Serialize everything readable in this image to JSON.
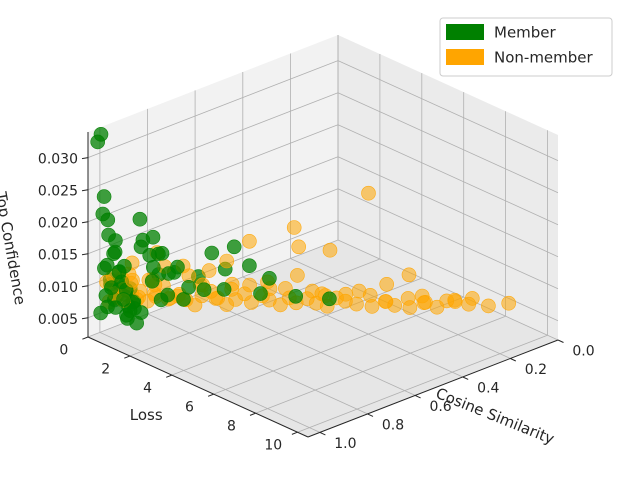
{
  "chart_data": {
    "type": "scatter3d",
    "title": "",
    "xlabel": "Loss",
    "ylabel": "Cosine Similarity",
    "zlabel": "Top Confidence",
    "xlim": [
      0,
      10.5
    ],
    "ylim": [
      0,
      1.05
    ],
    "zlim": [
      0.002,
      0.034
    ],
    "xticks": [
      0,
      2,
      4,
      6,
      8,
      10
    ],
    "yticks": [
      0.0,
      0.2,
      0.4,
      0.6,
      0.8,
      1.0
    ],
    "zticks": [
      0.005,
      0.01,
      0.015,
      0.02,
      0.025,
      0.03
    ],
    "xtick_labels": [
      "0",
      "2",
      "4",
      "6",
      "8",
      "10"
    ],
    "ytick_labels": [
      "0.0",
      "0.2",
      "0.4",
      "0.6",
      "0.8",
      "1.0"
    ],
    "ztick_labels": [
      "0.005",
      "0.010",
      "0.015",
      "0.020",
      "0.025",
      "0.030"
    ],
    "legend": [
      {
        "name": "Member",
        "color": "#008000"
      },
      {
        "name": "Non-member",
        "color": "#ffa500"
      }
    ],
    "legend_position": "top-right",
    "series": [
      {
        "name": "Non-member",
        "color": "#ffa500",
        "points": [
          [
            8.6,
            0.04,
            0.0055
          ],
          [
            8.2,
            0.09,
            0.0052
          ],
          [
            8.0,
            0.14,
            0.0068
          ],
          [
            7.6,
            0.12,
            0.005
          ],
          [
            7.5,
            0.17,
            0.0062
          ],
          [
            7.3,
            0.15,
            0.0054
          ],
          [
            7.0,
            0.2,
            0.0048
          ],
          [
            6.9,
            0.24,
            0.006
          ],
          [
            6.6,
            0.22,
            0.0052
          ],
          [
            6.5,
            0.27,
            0.005
          ],
          [
            6.3,
            0.26,
            0.006
          ],
          [
            6.0,
            0.29,
            0.0049
          ],
          [
            5.9,
            0.32,
            0.0058
          ],
          [
            5.7,
            0.3,
            0.0052
          ],
          [
            5.6,
            0.35,
            0.005
          ],
          [
            5.4,
            0.34,
            0.0063
          ],
          [
            5.2,
            0.38,
            0.0052
          ],
          [
            5.1,
            0.36,
            0.0068
          ],
          [
            4.9,
            0.4,
            0.0055
          ],
          [
            4.7,
            0.42,
            0.006
          ],
          [
            4.6,
            0.45,
            0.005
          ],
          [
            4.4,
            0.44,
            0.0062
          ],
          [
            4.3,
            0.47,
            0.0053
          ],
          [
            4.1,
            0.49,
            0.006
          ],
          [
            4.0,
            0.46,
            0.0066
          ],
          [
            3.8,
            0.51,
            0.0052
          ],
          [
            3.7,
            0.53,
            0.0061
          ],
          [
            3.5,
            0.55,
            0.005
          ],
          [
            3.4,
            0.52,
            0.007
          ],
          [
            3.2,
            0.57,
            0.0056
          ],
          [
            3.1,
            0.59,
            0.0064
          ],
          [
            3.0,
            0.56,
            0.008
          ],
          [
            2.8,
            0.61,
            0.0052
          ],
          [
            2.7,
            0.63,
            0.0067
          ],
          [
            2.6,
            0.6,
            0.0075
          ],
          [
            2.5,
            0.65,
            0.0058
          ],
          [
            2.3,
            0.67,
            0.005
          ],
          [
            2.2,
            0.64,
            0.0068
          ],
          [
            2.1,
            0.69,
            0.006
          ],
          [
            2.0,
            0.71,
            0.0072
          ],
          [
            1.9,
            0.68,
            0.0055
          ],
          [
            1.8,
            0.73,
            0.0065
          ],
          [
            1.7,
            0.75,
            0.0052
          ],
          [
            1.6,
            0.72,
            0.0078
          ],
          [
            1.5,
            0.77,
            0.006
          ],
          [
            1.4,
            0.79,
            0.007
          ],
          [
            1.3,
            0.76,
            0.0056
          ],
          [
            1.2,
            0.81,
            0.0064
          ],
          [
            1.1,
            0.83,
            0.0085
          ],
          [
            1.0,
            0.8,
            0.0058
          ],
          [
            0.9,
            0.85,
            0.0072
          ],
          [
            0.8,
            0.87,
            0.0062
          ],
          [
            0.7,
            0.84,
            0.009
          ],
          [
            0.6,
            0.89,
            0.0068
          ],
          [
            0.5,
            0.91,
            0.0075
          ],
          [
            0.4,
            0.88,
            0.006
          ],
          [
            0.3,
            0.93,
            0.0082
          ],
          [
            0.2,
            0.95,
            0.007
          ],
          [
            0.15,
            0.92,
            0.0095
          ],
          [
            0.1,
            0.97,
            0.0065
          ],
          [
            5.3,
            0.5,
            0.0155
          ],
          [
            6.0,
            0.4,
            0.024
          ],
          [
            4.6,
            0.57,
            0.016
          ],
          [
            4.5,
            0.58,
            0.019
          ],
          [
            3.5,
            0.68,
            0.0168
          ],
          [
            1.7,
            0.8,
            0.012
          ],
          [
            1.2,
            0.9,
            0.0105
          ],
          [
            0.9,
            0.84,
            0.0135
          ],
          [
            0.6,
            0.93,
            0.011
          ],
          [
            3.1,
            0.74,
            0.014
          ],
          [
            2.6,
            0.77,
            0.0122
          ],
          [
            6.8,
            0.3,
            0.011
          ],
          [
            6.3,
            0.35,
            0.0095
          ],
          [
            7.2,
            0.28,
            0.008
          ],
          [
            7.8,
            0.23,
            0.0074
          ],
          [
            5.6,
            0.46,
            0.0085
          ],
          [
            4.2,
            0.54,
            0.0105
          ],
          [
            2.2,
            0.82,
            0.0115
          ],
          [
            1.5,
            0.86,
            0.0125
          ],
          [
            0.8,
            0.94,
            0.01
          ],
          [
            0.4,
            0.9,
            0.012
          ],
          [
            0.3,
            0.97,
            0.0108
          ],
          [
            2.9,
            0.7,
            0.0095
          ],
          [
            3.8,
            0.62,
            0.009
          ],
          [
            4.8,
            0.49,
            0.0078
          ],
          [
            1.0,
            0.92,
            0.0088
          ],
          [
            0.7,
            0.96,
            0.0092
          ],
          [
            1.3,
            0.88,
            0.0078
          ],
          [
            2.4,
            0.78,
            0.0098
          ],
          [
            1.9,
            0.84,
            0.0082
          ],
          [
            0.5,
            0.98,
            0.0085
          ],
          [
            0.2,
            0.99,
            0.01
          ],
          [
            1.1,
            0.96,
            0.0112
          ],
          [
            0.9,
            0.98,
            0.008
          ],
          [
            1.6,
            0.91,
            0.0105
          ]
        ]
      },
      {
        "name": "Member",
        "color": "#008000",
        "points": [
          [
            0.05,
            1.0,
            0.033
          ],
          [
            0.12,
            1.02,
            0.0322
          ],
          [
            0.2,
            1.0,
            0.0235
          ],
          [
            0.25,
            1.01,
            0.021
          ],
          [
            0.15,
            0.98,
            0.0195
          ],
          [
            0.3,
            0.99,
            0.0175
          ],
          [
            0.4,
            0.97,
            0.0165
          ],
          [
            0.5,
            0.98,
            0.015
          ],
          [
            0.2,
            0.96,
            0.014
          ],
          [
            0.35,
            1.0,
            0.013
          ],
          [
            0.6,
            0.95,
            0.0125
          ],
          [
            0.1,
            0.99,
            0.012
          ],
          [
            0.45,
            0.96,
            0.0115
          ],
          [
            0.25,
            0.94,
            0.011
          ],
          [
            0.7,
            0.97,
            0.0105
          ],
          [
            0.15,
            0.97,
            0.01
          ],
          [
            0.55,
            1.0,
            0.0098
          ],
          [
            0.3,
            0.95,
            0.0095
          ],
          [
            0.8,
            0.96,
            0.0092
          ],
          [
            0.05,
            0.96,
            0.009
          ],
          [
            0.65,
            0.93,
            0.0088
          ],
          [
            0.4,
            1.01,
            0.0085
          ],
          [
            0.9,
            0.98,
            0.0082
          ],
          [
            0.2,
            0.92,
            0.008
          ],
          [
            0.5,
            0.94,
            0.0078
          ],
          [
            1.0,
            0.95,
            0.0075
          ],
          [
            0.35,
            0.97,
            0.0072
          ],
          [
            0.75,
            1.0,
            0.007
          ],
          [
            0.1,
            0.94,
            0.0068
          ],
          [
            1.1,
            0.97,
            0.0066
          ],
          [
            0.6,
            0.91,
            0.0064
          ],
          [
            0.25,
            0.99,
            0.0062
          ],
          [
            0.85,
            0.93,
            0.006
          ],
          [
            1.2,
            0.99,
            0.0058
          ],
          [
            0.45,
            0.92,
            0.0056
          ],
          [
            0.15,
            1.01,
            0.0054
          ],
          [
            0.95,
            0.91,
            0.0052
          ],
          [
            0.7,
            0.95,
            0.005
          ],
          [
            1.3,
            0.96,
            0.0048
          ],
          [
            1.0,
            0.92,
            0.02
          ],
          [
            1.4,
            0.9,
            0.0175
          ],
          [
            0.8,
            0.89,
            0.016
          ],
          [
            1.6,
            0.88,
            0.015
          ],
          [
            1.2,
            0.86,
            0.014
          ],
          [
            2.0,
            0.85,
            0.013
          ],
          [
            1.8,
            0.87,
            0.012
          ],
          [
            1.5,
            0.82,
            0.011
          ],
          [
            2.3,
            0.83,
            0.01
          ],
          [
            1.1,
            0.85,
            0.0105
          ],
          [
            0.9,
            0.87,
            0.0135
          ],
          [
            1.3,
            0.89,
            0.0125
          ],
          [
            1.7,
            0.93,
            0.0115
          ],
          [
            2.1,
            0.9,
            0.0095
          ],
          [
            0.6,
            0.88,
            0.0145
          ],
          [
            3.0,
            0.7,
            0.0155
          ],
          [
            2.5,
            0.75,
            0.0145
          ],
          [
            3.5,
            0.68,
            0.013
          ],
          [
            2.8,
            0.72,
            0.012
          ],
          [
            4.0,
            0.64,
            0.0112
          ],
          [
            2.2,
            0.78,
            0.0108
          ],
          [
            3.2,
            0.76,
            0.01
          ],
          [
            2.7,
            0.8,
            0.0098
          ],
          [
            5.5,
            0.52,
            0.0085
          ],
          [
            4.8,
            0.6,
            0.009
          ],
          [
            3.8,
            0.66,
            0.0088
          ],
          [
            2.4,
            0.86,
            0.0087
          ],
          [
            1.9,
            0.91,
            0.0086
          ]
        ]
      }
    ]
  }
}
